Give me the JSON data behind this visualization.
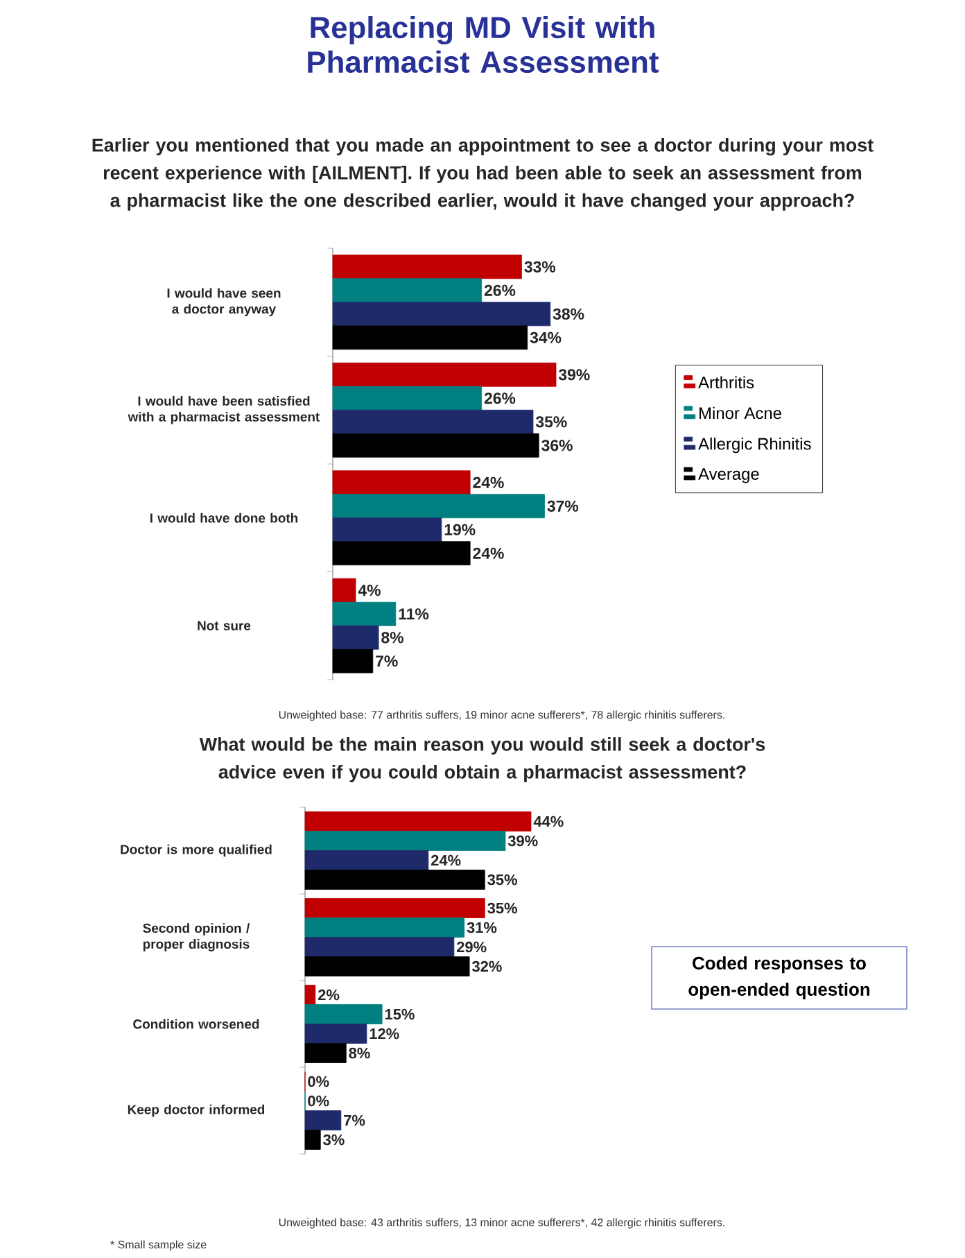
{
  "chart_data": [
    {
      "type": "bar",
      "orientation": "horizontal",
      "title": "Replacing MD Visit with Pharmacist Assessment",
      "subtitle": "Earlier you mentioned that you made an appointment to see a doctor during your most recent experience with [AILMENT]. If you had been able to seek an assessment from a pharmacist like the one described earlier, would it have changed your approach?",
      "categories": [
        "I would have seen a doctor anyway",
        "I would have been satisfied with a pharmacist assessment",
        "I would have done both",
        "Not sure"
      ],
      "legend": "right",
      "series": [
        {
          "name": "Arthritis",
          "color": "#c00000",
          "values": [
            33,
            39,
            24,
            4
          ],
          "value_labels": [
            "33%",
            "39%",
            "24%",
            "4%"
          ]
        },
        {
          "name": "Minor Acne",
          "color": "#008080",
          "values": [
            26,
            26,
            37,
            11
          ],
          "value_labels": [
            "26%",
            "26%",
            "37%",
            "11%"
          ]
        },
        {
          "name": "Allergic Rhinitis",
          "color": "#1f2a6b",
          "values": [
            38,
            35,
            19,
            8
          ],
          "value_labels": [
            "38%",
            "35%",
            "19%",
            "8%"
          ]
        },
        {
          "name": "Average",
          "color": "#000000",
          "values": [
            34,
            36,
            24,
            7
          ],
          "value_labels": [
            "34%",
            "36%",
            "24%",
            "7%"
          ]
        }
      ],
      "annotations": [
        "Unweighted base: 77 arthritis suffers, 19 minor acne sufferers*, 78 allergic rhinitis sufferers."
      ]
    },
    {
      "type": "bar",
      "orientation": "horizontal",
      "subtitle": "What would be the main reason you would still seek a doctor's advice even if you could obtain a pharmacist assessment?",
      "categories": [
        "Doctor is more qualified",
        "Second opinion / proper diagnosis",
        "Condition worsened",
        "Keep doctor informed"
      ],
      "series": [
        {
          "color": "#c00000",
          "values": [
            44,
            35,
            2,
            0
          ],
          "value_labels": [
            "44%",
            "35%",
            "2%",
            "0%"
          ]
        },
        {
          "color": "#008080",
          "values": [
            39,
            31,
            15,
            0
          ],
          "value_labels": [
            "39%",
            "31%",
            "15%",
            "0%"
          ]
        },
        {
          "color": "#1f2a6b",
          "values": [
            24,
            29,
            12,
            7
          ],
          "value_labels": [
            "24%",
            "29%",
            "12%",
            "7%"
          ]
        },
        {
          "color": "#000000",
          "values": [
            35,
            32,
            8,
            3
          ],
          "value_labels": [
            "35%",
            "32%",
            "8%",
            "3%"
          ]
        }
      ],
      "annotations": [
        "Coded responses to open-ended question",
        "Unweighted base: 43 arthritis suffers, 13 minor acne sufferers*, 42 allergic rhinitis sufferers.",
        "* Small sample size"
      ]
    }
  ]
}
